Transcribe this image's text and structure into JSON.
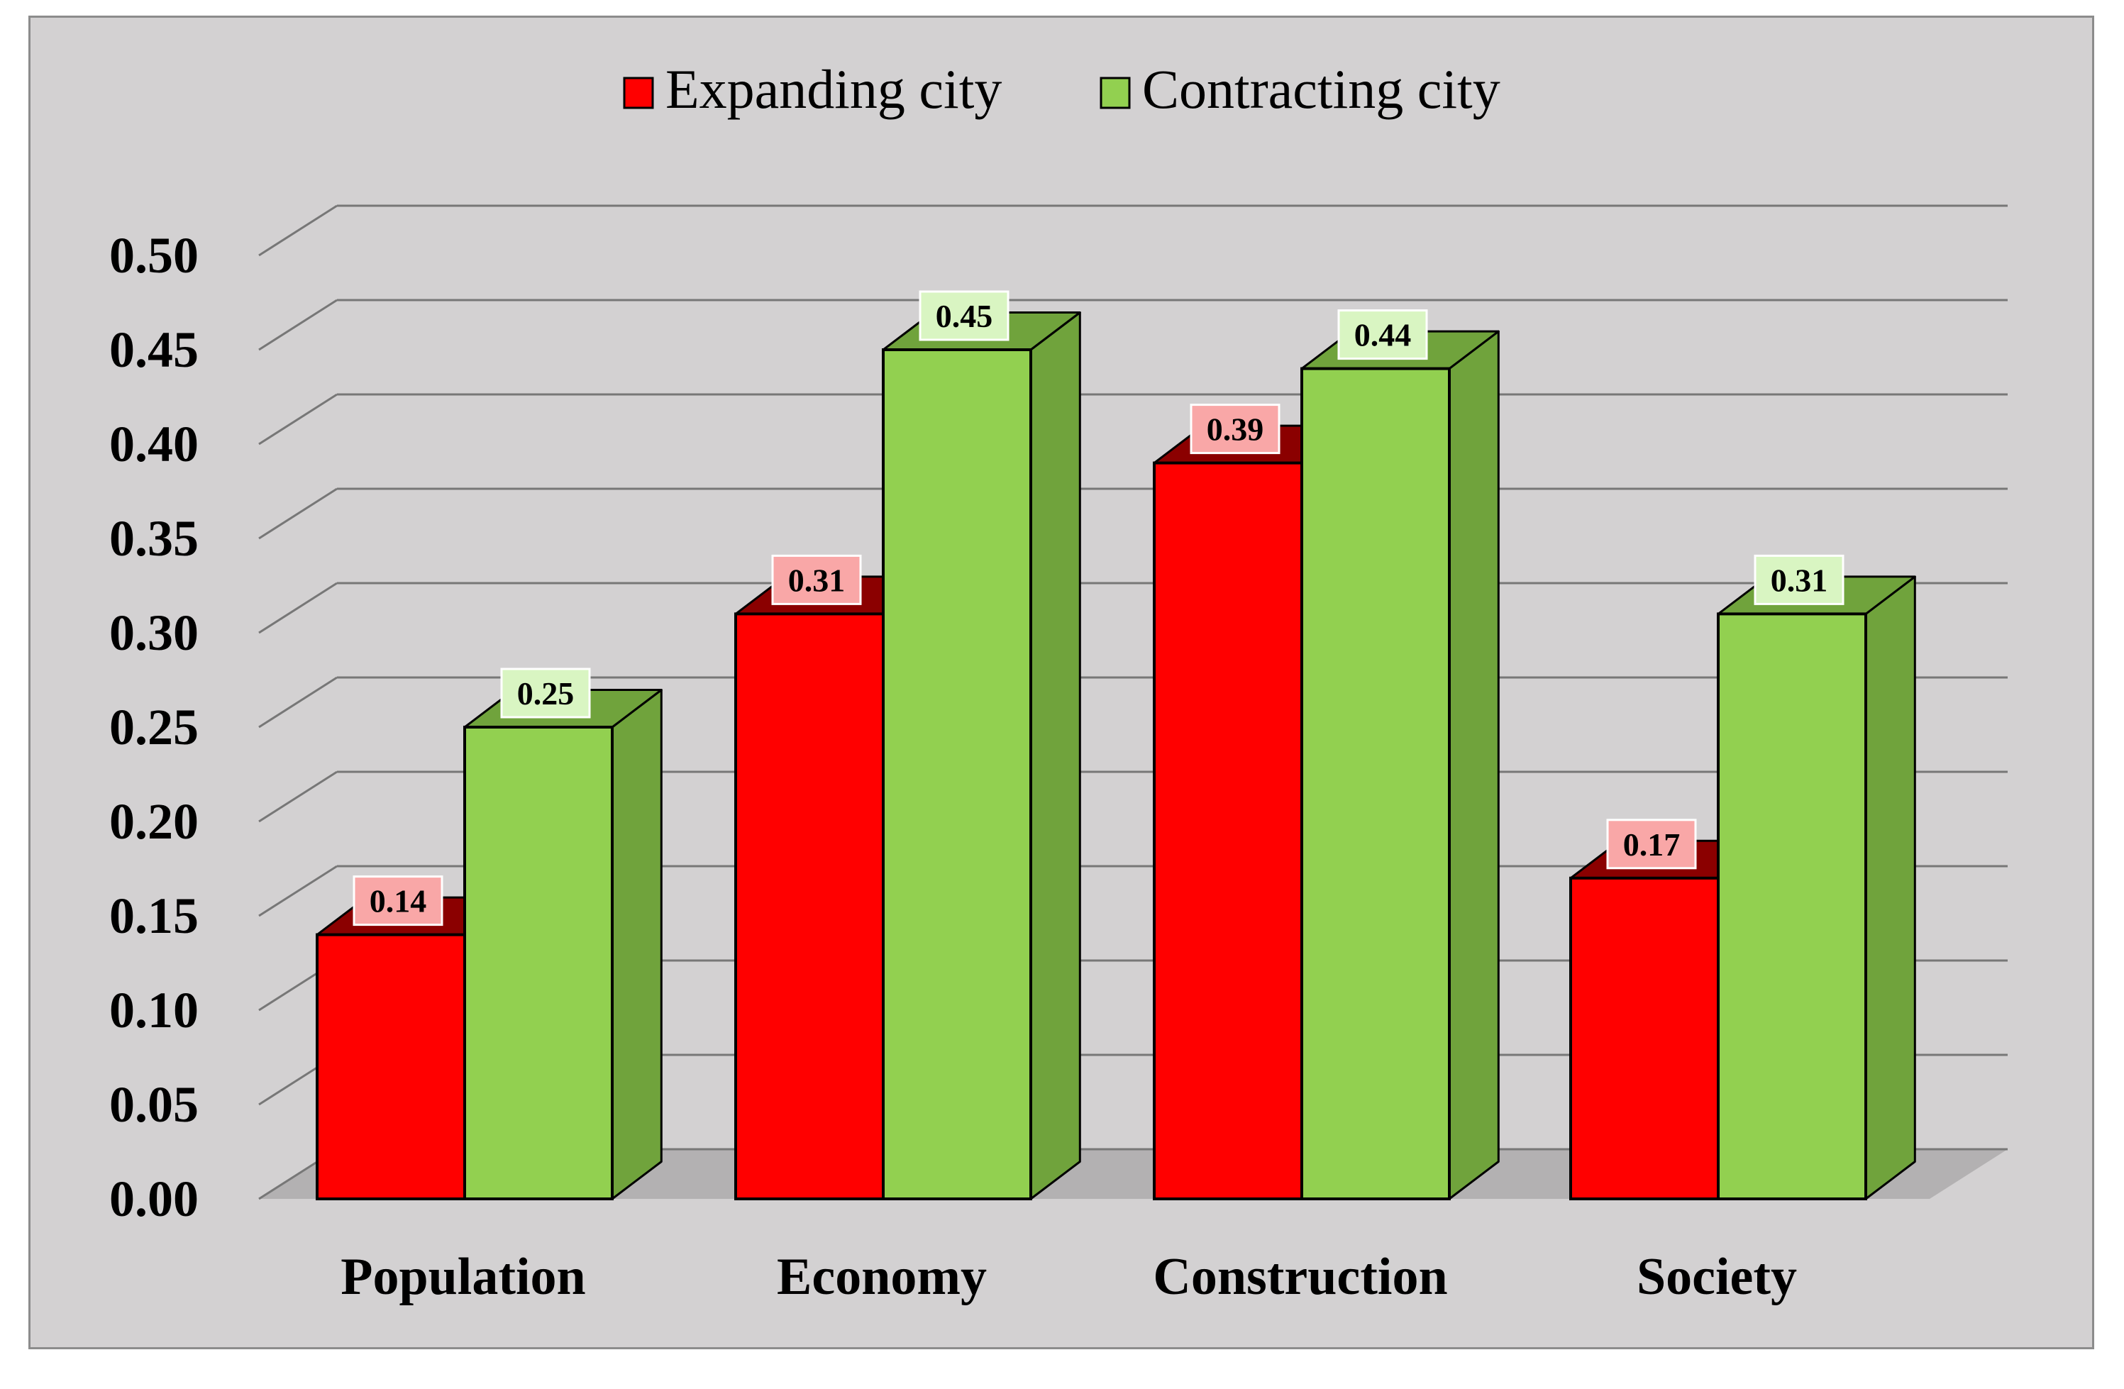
{
  "chart_data": {
    "type": "bar",
    "title": "",
    "xlabel": "",
    "ylabel": "",
    "categories": [
      "Population",
      "Economy",
      "Construction",
      "Society"
    ],
    "series": [
      {
        "name": "Expanding city",
        "values": [
          0.14,
          0.31,
          0.39,
          0.17
        ],
        "color": "#ff0000",
        "side_color": "#8b0000",
        "label_bg": "#f9a7a7"
      },
      {
        "name": "Contracting city",
        "values": [
          0.25,
          0.45,
          0.44,
          0.31
        ],
        "color": "#92d050",
        "side_color": "#70a33c",
        "label_bg": "#d9f5c2"
      }
    ],
    "ylim": [
      0,
      0.5
    ],
    "yticks": [
      "0.00",
      "0.05",
      "0.10",
      "0.15",
      "0.20",
      "0.25",
      "0.30",
      "0.35",
      "0.40",
      "0.45",
      "0.50"
    ],
    "grid": true,
    "legend": "top-center",
    "style": "3d-column"
  },
  "colors": {
    "background": "#d3d1d2",
    "floor": "#b3b1b2",
    "grid": "#777777"
  }
}
